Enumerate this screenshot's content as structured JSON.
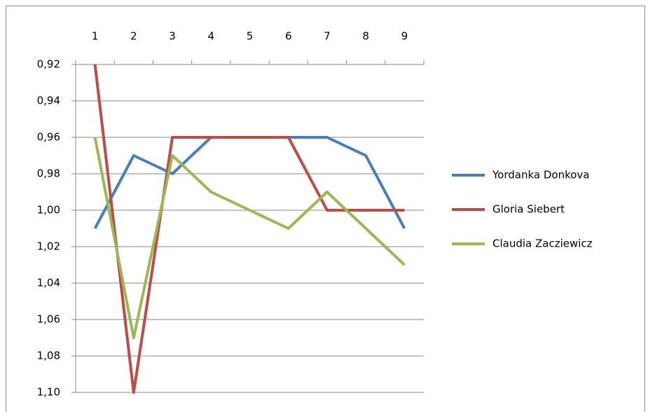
{
  "chart_data": {
    "type": "line",
    "categories": [
      "1",
      "2",
      "3",
      "4",
      "5",
      "6",
      "7",
      "8",
      "9"
    ],
    "series": [
      {
        "name": "Yordanka Donkova",
        "color": "#4a7ebb",
        "values": [
          1.01,
          0.97,
          0.98,
          0.96,
          0.96,
          0.96,
          0.96,
          0.97,
          1.01
        ]
      },
      {
        "name": "Gloria Siebert",
        "color": "#be4b48",
        "values": [
          0.92,
          1.1,
          0.96,
          0.96,
          0.96,
          0.96,
          1.0,
          1.0,
          1.0
        ]
      },
      {
        "name": "Claudia Zacziewicz",
        "color": "#98b954",
        "values": [
          0.96,
          1.07,
          0.97,
          0.99,
          1.0,
          1.01,
          0.99,
          1.01,
          1.03
        ]
      }
    ],
    "ylim": [
      0.92,
      1.1
    ],
    "y_reversed": true,
    "yticks": [
      {
        "value": 0.92,
        "label": "0,92"
      },
      {
        "value": 0.94,
        "label": "0,94"
      },
      {
        "value": 0.96,
        "label": "0,96"
      },
      {
        "value": 0.98,
        "label": "0,98"
      },
      {
        "value": 1.0,
        "label": "1,00"
      },
      {
        "value": 1.02,
        "label": "1,02"
      },
      {
        "value": 1.04,
        "label": "1,04"
      },
      {
        "value": 1.06,
        "label": "1,06"
      },
      {
        "value": 1.08,
        "label": "1,08"
      },
      {
        "value": 1.1,
        "label": "1,10"
      }
    ],
    "grid": true,
    "legend": "right"
  }
}
